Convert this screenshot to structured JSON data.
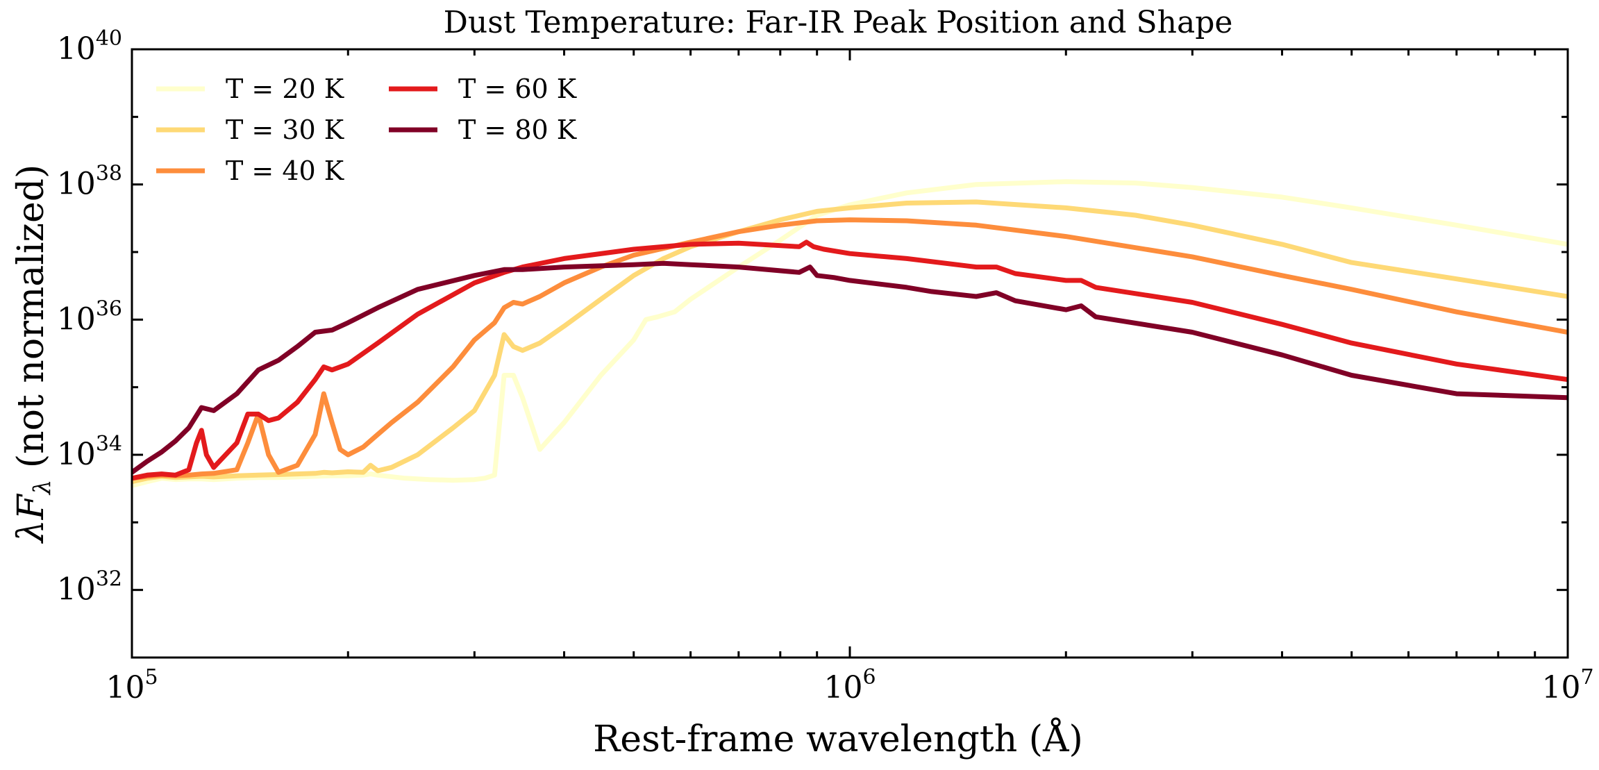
{
  "chart_data": {
    "type": "line",
    "title": "Dust Temperature: Far-IR Peak Position and Shape",
    "xlabel": "Rest-frame wavelength (Å)",
    "ylabel_prefix": "λF",
    "ylabel_sub": "λ",
    "ylabel_suffix": " (not normalized)",
    "xscale": "log",
    "yscale": "log",
    "xlim": [
      100000,
      10000000
    ],
    "ylim": [
      1e+31,
      1e+40
    ],
    "x_ticks": [
      {
        "value": 100000,
        "base": "10",
        "exp": "5"
      },
      {
        "value": 1000000,
        "base": "10",
        "exp": "6"
      },
      {
        "value": 10000000,
        "base": "10",
        "exp": "7"
      }
    ],
    "y_ticks": [
      {
        "value": 1e+32,
        "base": "10",
        "exp": "32"
      },
      {
        "value": 1e+34,
        "base": "10",
        "exp": "34"
      },
      {
        "value": 1e+36,
        "base": "10",
        "exp": "36"
      },
      {
        "value": 1e+38,
        "base": "10",
        "exp": "38"
      },
      {
        "value": 1e+40,
        "base": "10",
        "exp": "40"
      }
    ],
    "grid": false,
    "legend_position": "top-left",
    "series": [
      {
        "name": "T = 20 K",
        "color": "#ffffcc",
        "x": [
          100000,
          105000,
          110000,
          115000,
          120000,
          125000,
          130000,
          140000,
          150000,
          160000,
          170000,
          180000,
          190000,
          200000,
          210000,
          215000,
          220000,
          240000,
          260000,
          280000,
          300000,
          310000,
          320000,
          330000,
          340000,
          350000,
          370000,
          400000,
          450000,
          500000,
          520000,
          540000,
          570000,
          600000,
          700000,
          800000,
          900000,
          1000000,
          1200000,
          1500000,
          2000000,
          2500000,
          3000000,
          4000000,
          5000000,
          7000000,
          10000000
        ],
        "y": [
          3.5e+33,
          4e+33,
          4.5e+33,
          4.3e+33,
          4.4e+33,
          4.4e+33,
          4.3e+33,
          4.5e+33,
          4.6e+33,
          4.6e+33,
          4.7e+33,
          4.8e+33,
          4.9e+33,
          4.9e+33,
          5e+33,
          5.2e+33,
          5e+33,
          4.5e+33,
          4.3e+33,
          4.2e+33,
          4.3e+33,
          4.5e+33,
          5e+33,
          1.5e+35,
          1.5e+35,
          7e+34,
          1.2e+34,
          3e+34,
          1.5e+35,
          5e+35,
          1e+36,
          1.1e+36,
          1.3e+36,
          2e+36,
          6e+36,
          1.5e+37,
          3.5e+37,
          5e+37,
          7.5e+37,
          1e+38,
          1.1e+38,
          1.05e+38,
          9e+37,
          6.5e+37,
          4.5e+37,
          2.5e+37,
          1.3e+37
        ]
      },
      {
        "name": "T = 30 K",
        "color": "#fed976",
        "x": [
          100000,
          105000,
          110000,
          115000,
          120000,
          125000,
          130000,
          140000,
          150000,
          160000,
          170000,
          180000,
          185000,
          190000,
          195000,
          200000,
          210000,
          215000,
          220000,
          230000,
          250000,
          280000,
          300000,
          320000,
          330000,
          340000,
          350000,
          370000,
          400000,
          450000,
          500000,
          550000,
          600000,
          700000,
          800000,
          900000,
          1000000,
          1200000,
          1500000,
          2000000,
          2500000,
          3000000,
          4000000,
          5000000,
          7000000,
          10000000
        ],
        "y": [
          4e+33,
          4.5e+33,
          4.8e+33,
          4.6e+33,
          4.7e+33,
          4.8e+33,
          4.7e+33,
          4.9e+33,
          5e+33,
          5.1e+33,
          5.2e+33,
          5.3e+33,
          5.5e+33,
          5.4e+33,
          5.5e+33,
          5.6e+33,
          5.5e+33,
          7e+33,
          5.8e+33,
          6.5e+33,
          1e+34,
          2.5e+34,
          4.5e+34,
          1.5e+35,
          6e+35,
          4e+35,
          3.5e+35,
          4.5e+35,
          8e+35,
          2e+36,
          4.5e+36,
          8e+36,
          1.2e+37,
          2e+37,
          3e+37,
          4e+37,
          4.5e+37,
          5.3e+37,
          5.5e+37,
          4.5e+37,
          3.5e+37,
          2.5e+37,
          1.3e+37,
          7e+36,
          4e+36,
          2.2e+36
        ]
      },
      {
        "name": "T = 40 K",
        "color": "#fd8d3c",
        "x": [
          100000,
          105000,
          110000,
          115000,
          120000,
          125000,
          130000,
          140000,
          145000,
          150000,
          155000,
          160000,
          170000,
          180000,
          185000,
          190000,
          195000,
          200000,
          210000,
          220000,
          230000,
          250000,
          280000,
          300000,
          320000,
          330000,
          340000,
          350000,
          370000,
          400000,
          450000,
          500000,
          600000,
          700000,
          800000,
          900000,
          1000000,
          1200000,
          1500000,
          2000000,
          3000000,
          4000000,
          5000000,
          7000000,
          10000000
        ],
        "y": [
          4.5e+33,
          4.8e+33,
          5e+33,
          4.9e+33,
          5e+33,
          5.2e+33,
          5.3e+33,
          6e+33,
          1.5e+34,
          4e+34,
          1e+34,
          5.5e+33,
          7e+33,
          2e+34,
          8e+34,
          3e+34,
          1.2e+34,
          1e+34,
          1.3e+34,
          2e+34,
          3e+34,
          6e+34,
          2e+35,
          5e+35,
          9e+35,
          1.5e+36,
          1.8e+36,
          1.7e+36,
          2.2e+36,
          3.5e+36,
          6e+36,
          9e+36,
          1.4e+37,
          2e+37,
          2.5e+37,
          2.9e+37,
          3e+37,
          2.9e+37,
          2.5e+37,
          1.7e+37,
          8.5e+36,
          4.5e+36,
          2.8e+36,
          1.3e+36,
          6.5e+35
        ]
      },
      {
        "name": "T = 60 K",
        "color": "#e31a1c",
        "x": [
          100000,
          105000,
          110000,
          115000,
          120000,
          123000,
          125000,
          127000,
          130000,
          140000,
          145000,
          150000,
          155000,
          160000,
          170000,
          180000,
          185000,
          190000,
          200000,
          220000,
          250000,
          300000,
          330000,
          350000,
          400000,
          500000,
          600000,
          700000,
          850000,
          870000,
          890000,
          920000,
          1000000,
          1200000,
          1500000,
          1600000,
          1700000,
          2000000,
          2100000,
          2200000,
          3000000,
          4000000,
          5000000,
          7000000,
          10000000
        ],
        "y": [
          4.5e+33,
          5e+33,
          5.2e+33,
          5e+33,
          6e+33,
          1.5e+34,
          2.3e+34,
          1e+34,
          6.5e+33,
          1.5e+34,
          4e+34,
          4e+34,
          3.2e+34,
          3.5e+34,
          6e+34,
          1.3e+35,
          2e+35,
          1.8e+35,
          2.2e+35,
          4.5e+35,
          1.2e+36,
          3.5e+36,
          5e+36,
          6e+36,
          8e+36,
          1.1e+37,
          1.3e+37,
          1.35e+37,
          1.2e+37,
          1.4e+37,
          1.2e+37,
          1.1e+37,
          9.5e+36,
          8e+36,
          6e+36,
          6e+36,
          4.8e+36,
          3.8e+36,
          3.8e+36,
          3e+36,
          1.8e+36,
          8.5e+35,
          4.5e+35,
          2.2e+35,
          1.3e+35
        ]
      },
      {
        "name": "T = 80 K",
        "color": "#800026",
        "x": [
          100000,
          105000,
          110000,
          115000,
          120000,
          125000,
          130000,
          140000,
          150000,
          160000,
          170000,
          180000,
          190000,
          200000,
          220000,
          250000,
          300000,
          330000,
          350000,
          400000,
          500000,
          550000,
          600000,
          700000,
          850000,
          880000,
          900000,
          950000,
          1000000,
          1200000,
          1300000,
          1500000,
          1600000,
          1700000,
          2000000,
          2100000,
          2200000,
          3000000,
          4000000,
          5000000,
          7000000,
          10000000
        ],
        "y": [
          5.5e+33,
          8e+33,
          1.1e+34,
          1.6e+34,
          2.5e+34,
          5e+34,
          4.5e+34,
          8e+34,
          1.8e+35,
          2.5e+35,
          4e+35,
          6.5e+35,
          7e+35,
          9e+35,
          1.5e+36,
          2.8e+36,
          4.5e+36,
          5.5e+36,
          5.5e+36,
          6e+36,
          6.5e+36,
          6.8e+36,
          6.5e+36,
          6e+36,
          5e+36,
          6e+36,
          4.5e+36,
          4.2e+36,
          3.8e+36,
          3e+36,
          2.6e+36,
          2.2e+36,
          2.5e+36,
          1.9e+36,
          1.4e+36,
          1.6e+36,
          1.1e+36,
          6.5e+35,
          3e+35,
          1.5e+35,
          8e+34,
          7e+34
        ]
      }
    ]
  }
}
